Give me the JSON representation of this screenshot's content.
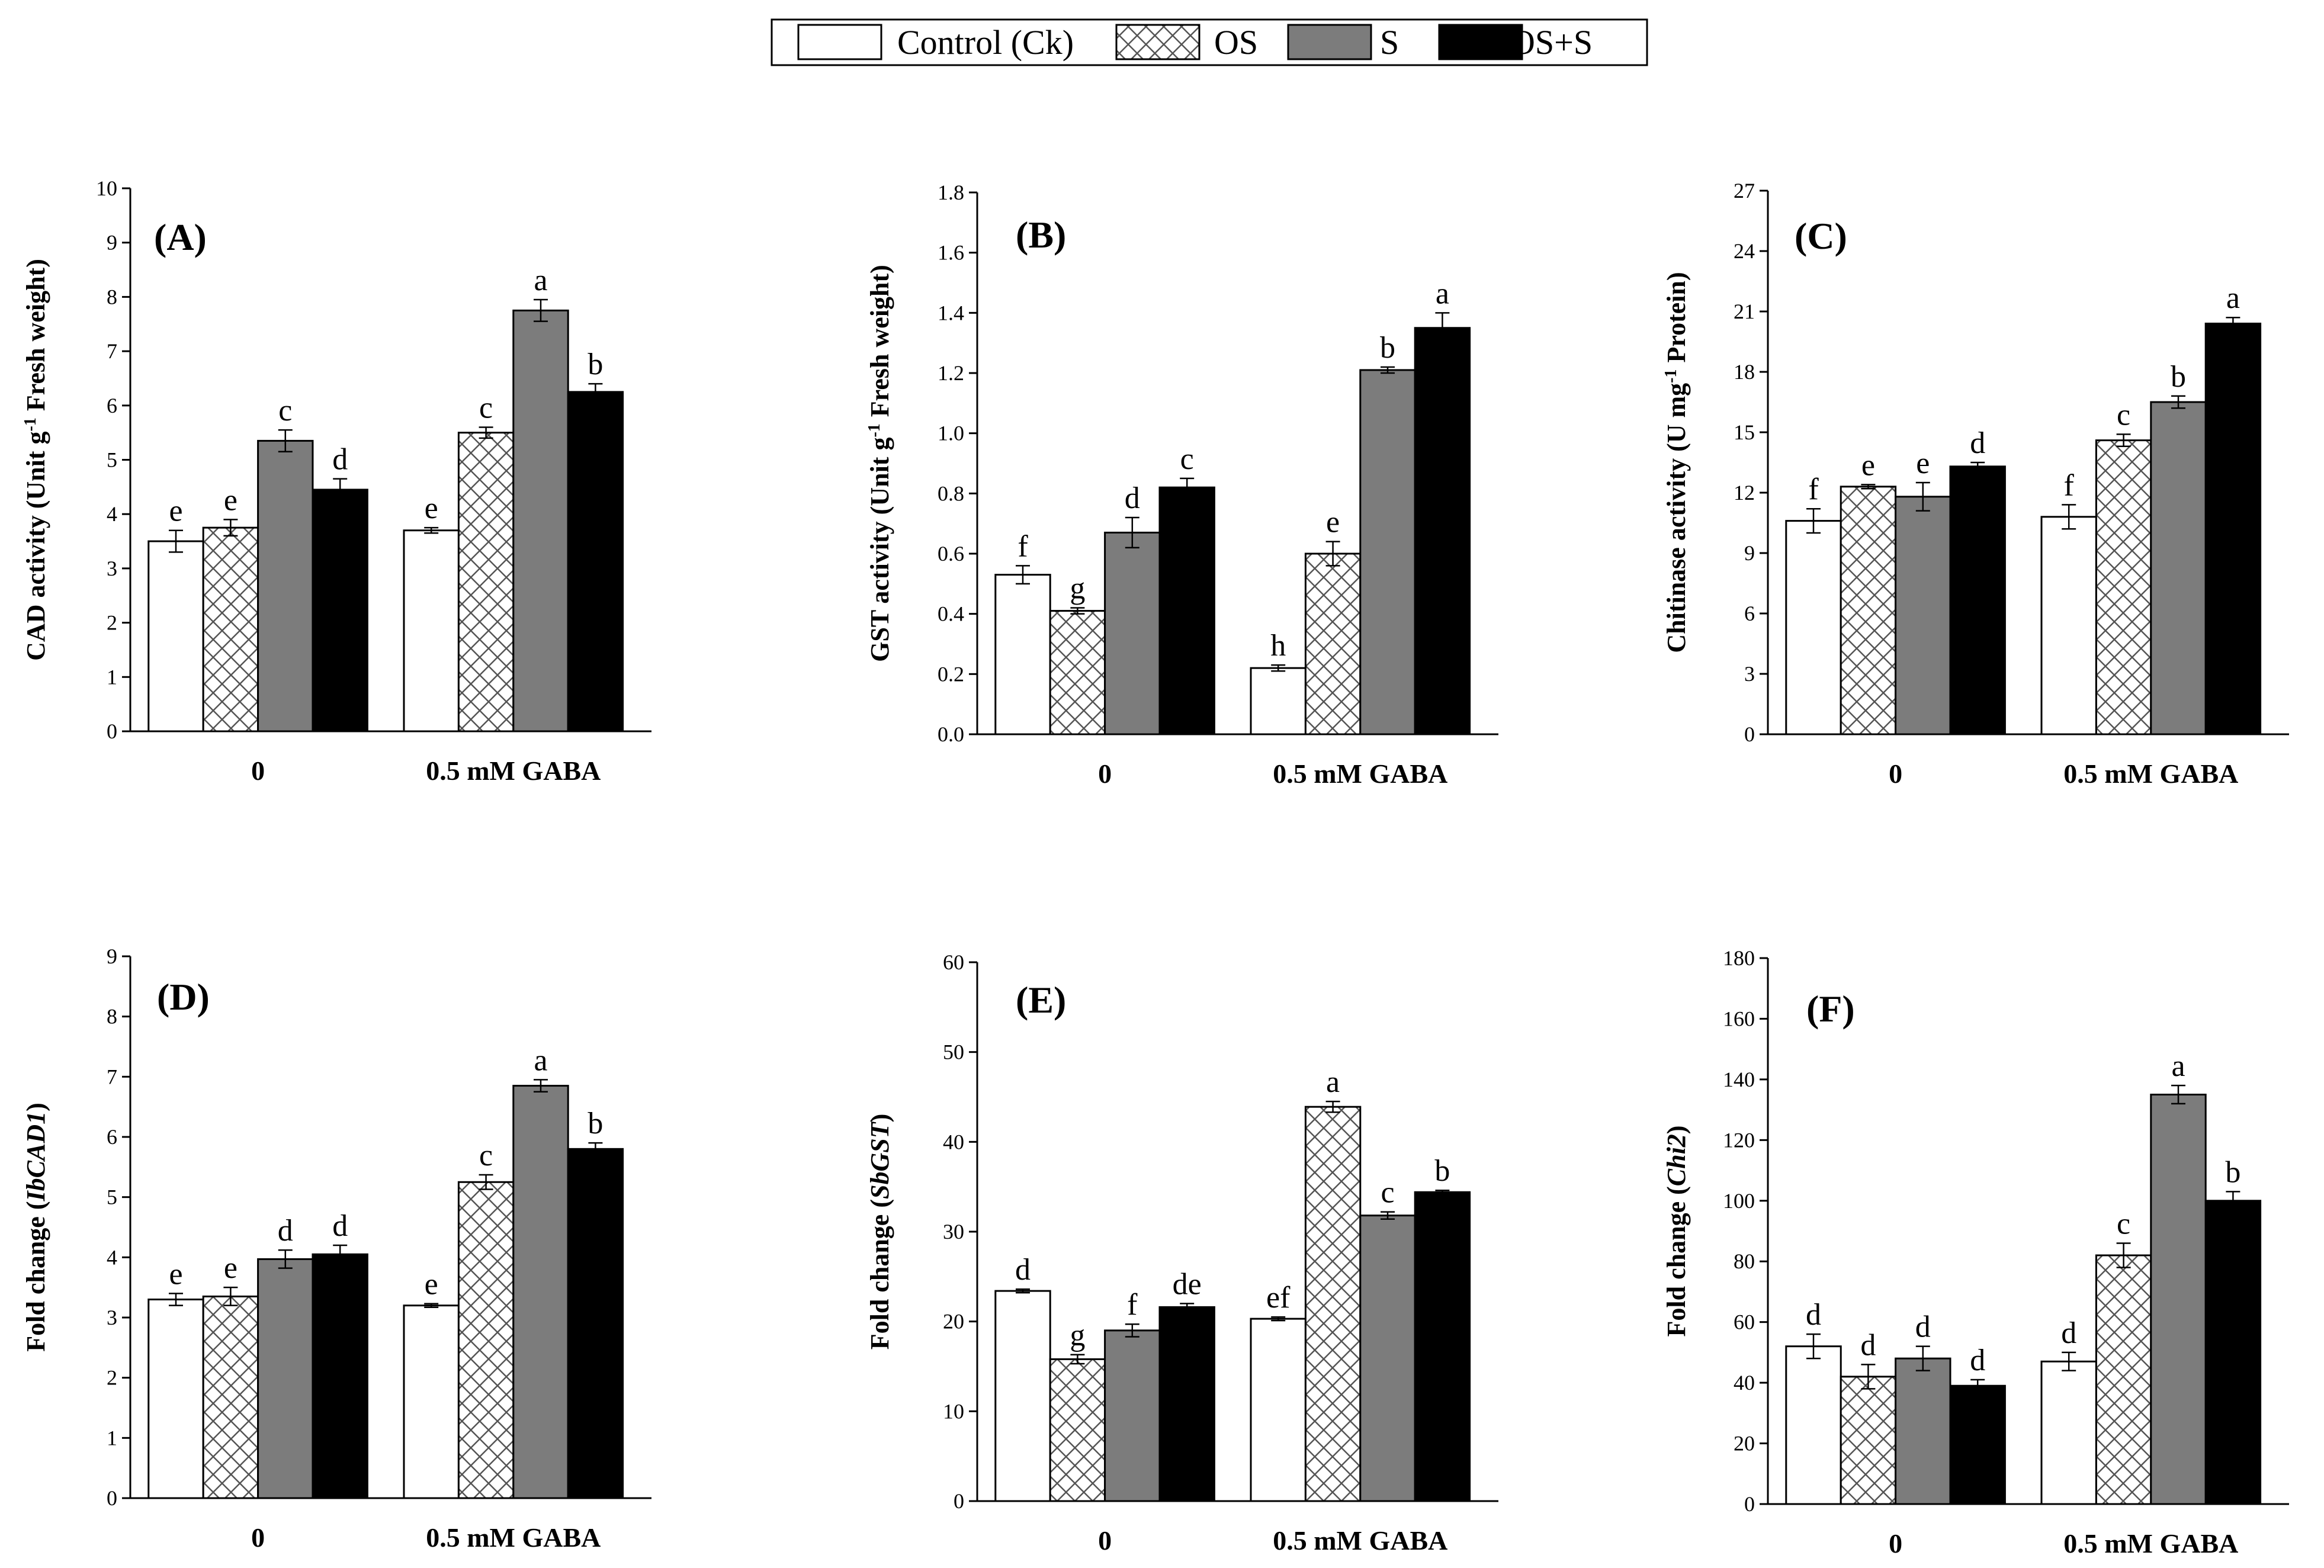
{
  "legend": [
    {
      "name": "Control (Ck)",
      "pattern": "white"
    },
    {
      "name": "OS",
      "pattern": "cross"
    },
    {
      "name": "S",
      "pattern": "gray"
    },
    {
      "name": "OS+S",
      "pattern": "black"
    }
  ],
  "colors": {
    "gray": "#7c7c7c",
    "black": "#000000",
    "white": "#ffffff",
    "hatch": "#555555"
  },
  "chart_data": [
    {
      "panel": "(A)",
      "type": "bar",
      "ylabel_main": "CAD activity (Unit g",
      "ylabel_sup": "-1",
      "ylabel_rest": " Fresh weight)",
      "ylabel_italic": false,
      "ylim": [
        0,
        10
      ],
      "yticks": [
        "0",
        "1",
        "2",
        "3",
        "4",
        "5",
        "6",
        "7",
        "8",
        "9",
        "10"
      ],
      "categories": [
        "0",
        "0.5 mM GABA"
      ],
      "series": [
        {
          "name": "Control (Ck)",
          "values": [
            3.5,
            3.7
          ],
          "errors": [
            0.2,
            0.05
          ],
          "letters": [
            "e",
            "e"
          ]
        },
        {
          "name": "OS",
          "values": [
            3.75,
            5.5
          ],
          "errors": [
            0.15,
            0.1
          ],
          "letters": [
            "e",
            "c"
          ]
        },
        {
          "name": "S",
          "values": [
            5.35,
            7.75
          ],
          "errors": [
            0.2,
            0.2
          ],
          "letters": [
            "c",
            "a"
          ]
        },
        {
          "name": "OS+S",
          "values": [
            4.45,
            6.25
          ],
          "errors": [
            0.2,
            0.15
          ],
          "letters": [
            "d",
            "b"
          ]
        }
      ]
    },
    {
      "panel": "(B)",
      "type": "bar",
      "ylabel_main": "GST activity (Unit g",
      "ylabel_sup": "-1",
      "ylabel_rest": " Fresh weight)",
      "ylabel_italic": false,
      "ylim": [
        0,
        1.8
      ],
      "yticks": [
        "0.0",
        "0.2",
        "0.4",
        "0.6",
        "0.8",
        "1.0",
        "1.2",
        "1.4",
        "1.6",
        "1.8"
      ],
      "categories": [
        "0",
        "0.5 mM GABA"
      ],
      "series": [
        {
          "name": "Control (Ck)",
          "values": [
            0.53,
            0.22
          ],
          "errors": [
            0.03,
            0.01
          ],
          "letters": [
            "f",
            "h"
          ]
        },
        {
          "name": "OS",
          "values": [
            0.41,
            0.6
          ],
          "errors": [
            0.01,
            0.04
          ],
          "letters": [
            "g",
            "e"
          ]
        },
        {
          "name": "S",
          "values": [
            0.67,
            1.21
          ],
          "errors": [
            0.05,
            0.01
          ],
          "letters": [
            "d",
            "b"
          ]
        },
        {
          "name": "OS+S",
          "values": [
            0.82,
            1.35
          ],
          "errors": [
            0.03,
            0.05
          ],
          "letters": [
            "c",
            "a"
          ]
        }
      ]
    },
    {
      "panel": "(C)",
      "type": "bar",
      "ylabel_main": "Chitinase activity (U mg",
      "ylabel_sup": "-1",
      "ylabel_rest": " Protein)",
      "ylabel_italic": false,
      "ylim": [
        0,
        27
      ],
      "yticks": [
        "0",
        "3",
        "6",
        "9",
        "12",
        "15",
        "18",
        "21",
        "24",
        "27"
      ],
      "categories": [
        "0",
        "0.5 mM GABA"
      ],
      "series": [
        {
          "name": "Control (Ck)",
          "values": [
            10.6,
            10.8
          ],
          "errors": [
            0.6,
            0.6
          ],
          "letters": [
            "f",
            "f"
          ]
        },
        {
          "name": "OS",
          "values": [
            12.3,
            14.6
          ],
          "errors": [
            0.1,
            0.3
          ],
          "letters": [
            "e",
            "c"
          ]
        },
        {
          "name": "S",
          "values": [
            11.8,
            16.5
          ],
          "errors": [
            0.7,
            0.3
          ],
          "letters": [
            "e",
            "b"
          ]
        },
        {
          "name": "OS+S",
          "values": [
            13.3,
            20.4
          ],
          "errors": [
            0.2,
            0.3
          ],
          "letters": [
            "d",
            "a"
          ]
        }
      ]
    },
    {
      "panel": "(D)",
      "type": "bar",
      "ylabel_main": "Fold change (",
      "ylabel_italic_part": "IbCAD1",
      "ylabel_rest": ")",
      "ylabel_italic": true,
      "ylim": [
        0,
        9
      ],
      "yticks": [
        "0",
        "1",
        "2",
        "3",
        "4",
        "5",
        "6",
        "7",
        "8",
        "9"
      ],
      "categories": [
        "0",
        "0.5 mM GABA"
      ],
      "series": [
        {
          "name": "Control (Ck)",
          "values": [
            3.3,
            3.2
          ],
          "errors": [
            0.1,
            0.03
          ],
          "letters": [
            "e",
            "e"
          ]
        },
        {
          "name": "OS",
          "values": [
            3.35,
            5.25
          ],
          "errors": [
            0.15,
            0.12
          ],
          "letters": [
            "e",
            "c"
          ]
        },
        {
          "name": "S",
          "values": [
            3.97,
            6.85
          ],
          "errors": [
            0.15,
            0.1
          ],
          "letters": [
            "d",
            "a"
          ]
        },
        {
          "name": "OS+S",
          "values": [
            4.05,
            5.8
          ],
          "errors": [
            0.15,
            0.1
          ],
          "letters": [
            "d",
            "b"
          ]
        }
      ]
    },
    {
      "panel": "(E)",
      "type": "bar",
      "ylabel_main": "Fold change (",
      "ylabel_italic_part": "SbGST",
      "ylabel_rest": ")",
      "ylabel_italic": true,
      "ylim": [
        0,
        60
      ],
      "yticks": [
        "0",
        "10",
        "20",
        "30",
        "40",
        "50",
        "60"
      ],
      "categories": [
        "0",
        "0.5 mM GABA"
      ],
      "series": [
        {
          "name": "Control (Ck)",
          "values": [
            23.4,
            20.3
          ],
          "errors": [
            0.2,
            0.2
          ],
          "letters": [
            "d",
            "ef"
          ]
        },
        {
          "name": "OS",
          "values": [
            15.8,
            43.9
          ],
          "errors": [
            0.5,
            0.6
          ],
          "letters": [
            "g",
            "a"
          ]
        },
        {
          "name": "S",
          "values": [
            19.0,
            31.8
          ],
          "errors": [
            0.7,
            0.4
          ],
          "letters": [
            "f",
            "c"
          ]
        },
        {
          "name": "OS+S",
          "values": [
            21.6,
            34.4
          ],
          "errors": [
            0.4,
            0.2
          ],
          "letters": [
            "de",
            "b"
          ]
        }
      ]
    },
    {
      "panel": "(F)",
      "type": "bar",
      "ylabel_main": "Fold change (",
      "ylabel_italic_part": "Chi2",
      "ylabel_rest": ")",
      "ylabel_italic": true,
      "ylim": [
        0,
        180
      ],
      "yticks": [
        "0",
        "20",
        "40",
        "60",
        "80",
        "100",
        "120",
        "140",
        "160",
        "180"
      ],
      "categories": [
        "0",
        "0.5 mM GABA"
      ],
      "series": [
        {
          "name": "Control (Ck)",
          "values": [
            52,
            47
          ],
          "errors": [
            4,
            3
          ],
          "letters": [
            "d",
            "d"
          ]
        },
        {
          "name": "OS",
          "values": [
            42,
            82
          ],
          "errors": [
            4,
            4
          ],
          "letters": [
            "d",
            "c"
          ]
        },
        {
          "name": "S",
          "values": [
            48,
            135
          ],
          "errors": [
            4,
            3
          ],
          "letters": [
            "d",
            "a"
          ]
        },
        {
          "name": "OS+S",
          "values": [
            39,
            100
          ],
          "errors": [
            2,
            3
          ],
          "letters": [
            "d",
            "b"
          ]
        }
      ]
    }
  ]
}
